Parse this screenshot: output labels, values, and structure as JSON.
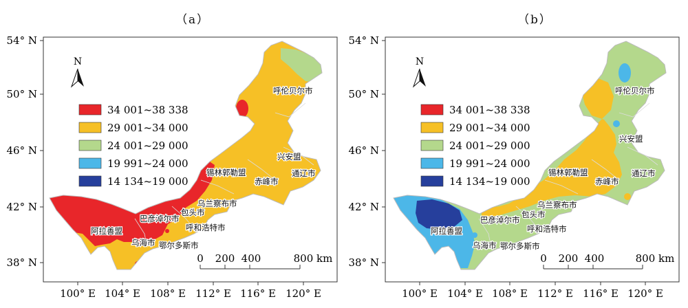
{
  "panels": [
    {
      "label": "（a）"
    },
    {
      "label": "（b）"
    }
  ],
  "north_label": "N",
  "lat_labels": [
    "54° N",
    "50° N",
    "46° N",
    "42° N",
    "38° N"
  ],
  "lon_labels": [
    "100° E",
    "104° E",
    "108° E",
    "112° E",
    "116° E",
    "120° E"
  ],
  "legend": [
    {
      "label": "34 001~38 338",
      "color": "#e8262a"
    },
    {
      "label": "29 001~34 000",
      "color": "#f6c026"
    },
    {
      "label": "24 001~29 000",
      "color": "#b4d88c"
    },
    {
      "label": "19 991~24 000",
      "color": "#4cb7e8"
    },
    {
      "label": "14 134~19 000",
      "color": "#263f9c"
    }
  ],
  "scale": {
    "ticks": [
      "0",
      "200",
      "400",
      "800 km"
    ]
  },
  "cities": {
    "hulunbuir": "呼伦贝尔市",
    "hinggan": "兴安盟",
    "tongliao": "通辽市",
    "chifeng": "赤峰市",
    "xilingol": "锡林郭勒盟",
    "ulanqab": "乌兰察布市",
    "baotou": "包头市",
    "bayannur": "巴彦淖尔市",
    "hohhot": "呼和浩特市",
    "alxa": "阿拉善盟",
    "wuhai": "乌海市",
    "ordos": "鄂尔多斯市"
  }
}
